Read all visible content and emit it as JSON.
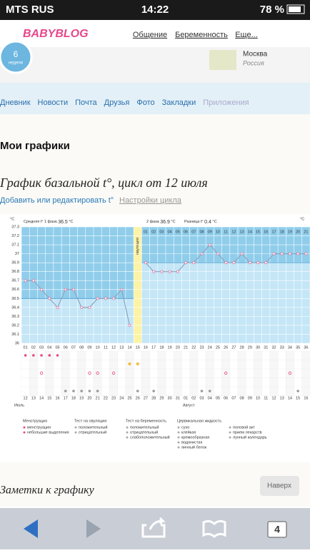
{
  "status": {
    "carrier": "MTS RUS",
    "time": "14:22",
    "battery": "78 %"
  },
  "header": {
    "logo": "BABYBLOG",
    "nav": [
      "Общение",
      "Беременность",
      "Еще..."
    ]
  },
  "profile": {
    "weeks": "6",
    "weeks_label": "недели",
    "city": "Москва",
    "country": "Россия"
  },
  "tabs": [
    "Дневник",
    "Новости",
    "Почта",
    "Друзья",
    "Фото",
    "Закладки",
    "Приложения"
  ],
  "page_title": "Мои графики",
  "chart_heading": "График базальной t°, цикл от 12 июля",
  "links": {
    "add": "Добавить или редактировать t°",
    "settings": "Настройки цикла"
  },
  "chart_data": {
    "type": "line",
    "unit": "°C",
    "color": "#8aa6c1",
    "phase1_label": "Средняя t° 1 фаза",
    "phase1_avg": 36.5,
    "phase2_label": "2 фаза",
    "phase2_avg": 36.9,
    "diff_label": "Разница t°",
    "diff": 0.4,
    "ovulation_label": "овуляция",
    "ovulation_day": "15",
    "categories": [
      "01",
      "02",
      "03",
      "04",
      "05",
      "06",
      "07",
      "08",
      "09",
      "10",
      "11",
      "12",
      "13",
      "14",
      "15",
      "16",
      "17",
      "18",
      "19",
      "20",
      "21",
      "22",
      "23",
      "24",
      "25",
      "26",
      "27",
      "28",
      "29",
      "30",
      "31",
      "32",
      "33",
      "34",
      "35",
      "36"
    ],
    "values": [
      36.7,
      36.7,
      36.6,
      36.5,
      36.4,
      36.6,
      36.6,
      36.4,
      36.4,
      36.5,
      36.5,
      36.5,
      36.6,
      36.2,
      null,
      36.9,
      36.8,
      36.8,
      36.8,
      36.8,
      36.9,
      36.9,
      37.0,
      37.1,
      37.0,
      36.9,
      36.9,
      37.0,
      36.9,
      36.9,
      36.9,
      37.0,
      37.0,
      37.0,
      37.0,
      37.0
    ],
    "phase2_labels": [
      "01",
      "02",
      "03",
      "04",
      "05",
      "06",
      "07",
      "08",
      "09",
      "10",
      "11",
      "12",
      "13",
      "14",
      "15",
      "16",
      "17",
      "18",
      "19",
      "20",
      "21"
    ],
    "ylim": [
      36,
      37.3
    ],
    "yticks": [
      36,
      36.1,
      36.2,
      36.3,
      36.4,
      36.5,
      36.6,
      36.7,
      36.8,
      36.9,
      37,
      37.1,
      37.2,
      37.3
    ],
    "grid": true,
    "dates": [
      "12",
      "13",
      "14",
      "15",
      "16",
      "17",
      "18",
      "19",
      "20",
      "21",
      "22",
      "23",
      "24",
      "25",
      "26",
      "27",
      "28",
      "29",
      "30",
      "31",
      "01",
      "02",
      "03",
      "04",
      "05",
      "06",
      "07",
      "08",
      "09",
      "10",
      "11",
      "12",
      "13",
      "14",
      "15",
      "16"
    ],
    "months": [
      "Июль",
      "Август"
    ],
    "legend": [
      {
        "title": "Менструация",
        "items": [
          "менструация",
          "небольшие выделения"
        ]
      },
      {
        "title": "Тест на овуляцию",
        "items": [
          "положительный",
          "отрицательный"
        ]
      },
      {
        "title": "Тест на беременность",
        "items": [
          "положительный",
          "отрицательный",
          "слабоположительный"
        ]
      },
      {
        "title": "Цервикальная жидкость",
        "items": [
          "сухо",
          "клейкая",
          "кремообразная",
          "водянистая",
          "яичный белок"
        ]
      },
      {
        "title": "",
        "items": [
          "половой акт",
          "прием лекарств",
          "лунный календарь"
        ]
      }
    ]
  },
  "notes": {
    "title": "Заметки к графику",
    "button": "Наверх"
  },
  "toolbar": {
    "tabs": "4"
  }
}
